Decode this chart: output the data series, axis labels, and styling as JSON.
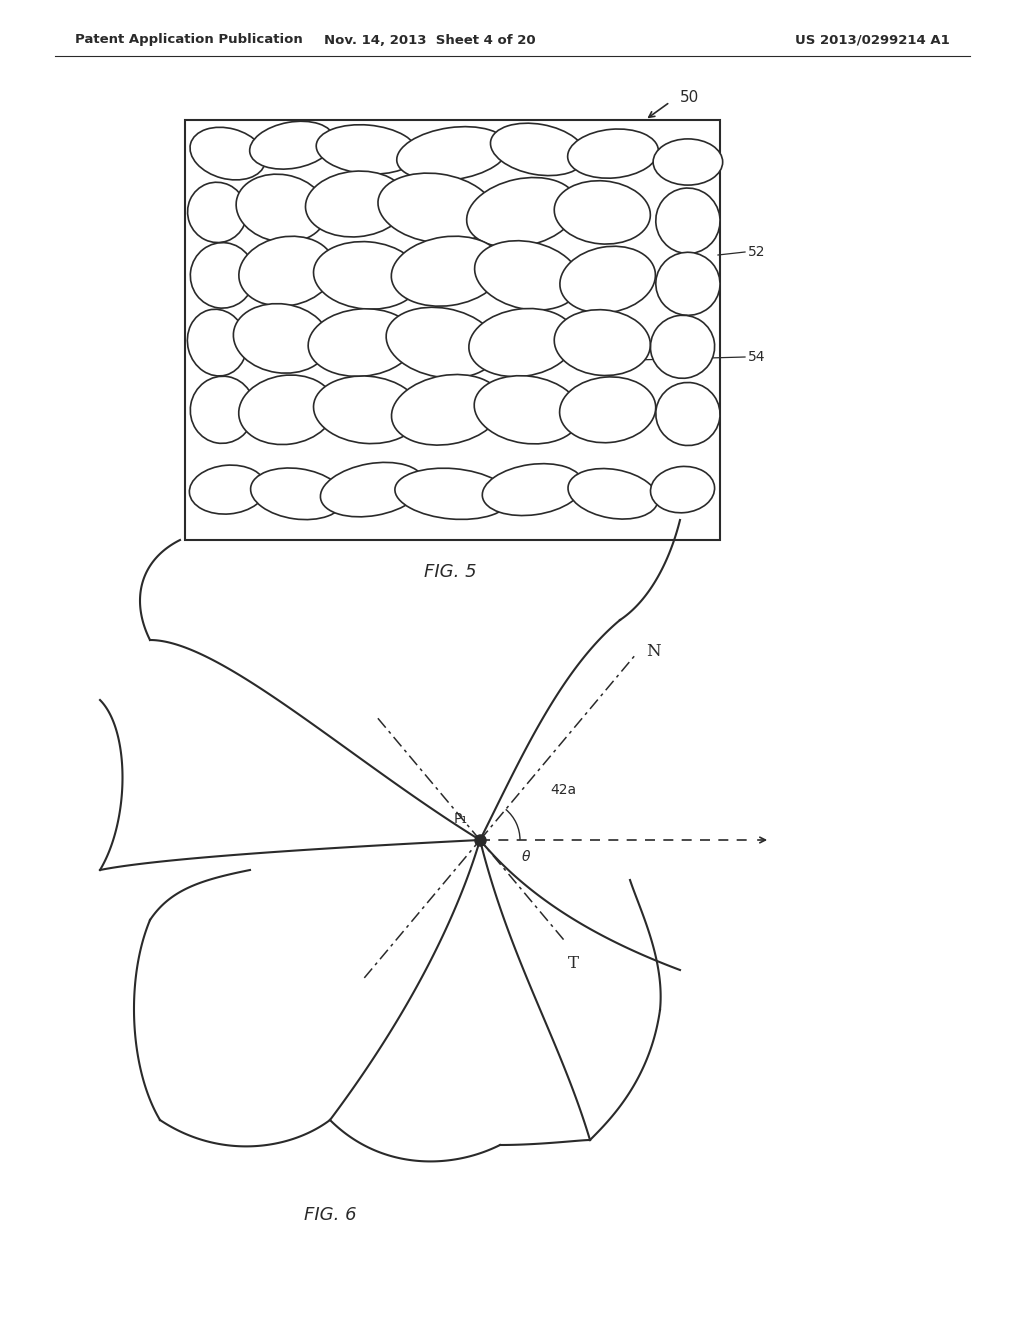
{
  "header_left": "Patent Application Publication",
  "header_mid": "Nov. 14, 2013  Sheet 4 of 20",
  "header_right": "US 2013/0299214 A1",
  "fig5_label": "FIG. 5",
  "fig6_label": "FIG. 6",
  "label_50": "50",
  "label_52": "52",
  "label_54": "54",
  "label_42a": "42a",
  "label_P1": "P₁",
  "label_N": "N",
  "label_T": "T",
  "label_theta": "θ",
  "line_color": "#2a2a2a",
  "bg_color": "#ffffff",
  "header_fontsize": 9.5
}
